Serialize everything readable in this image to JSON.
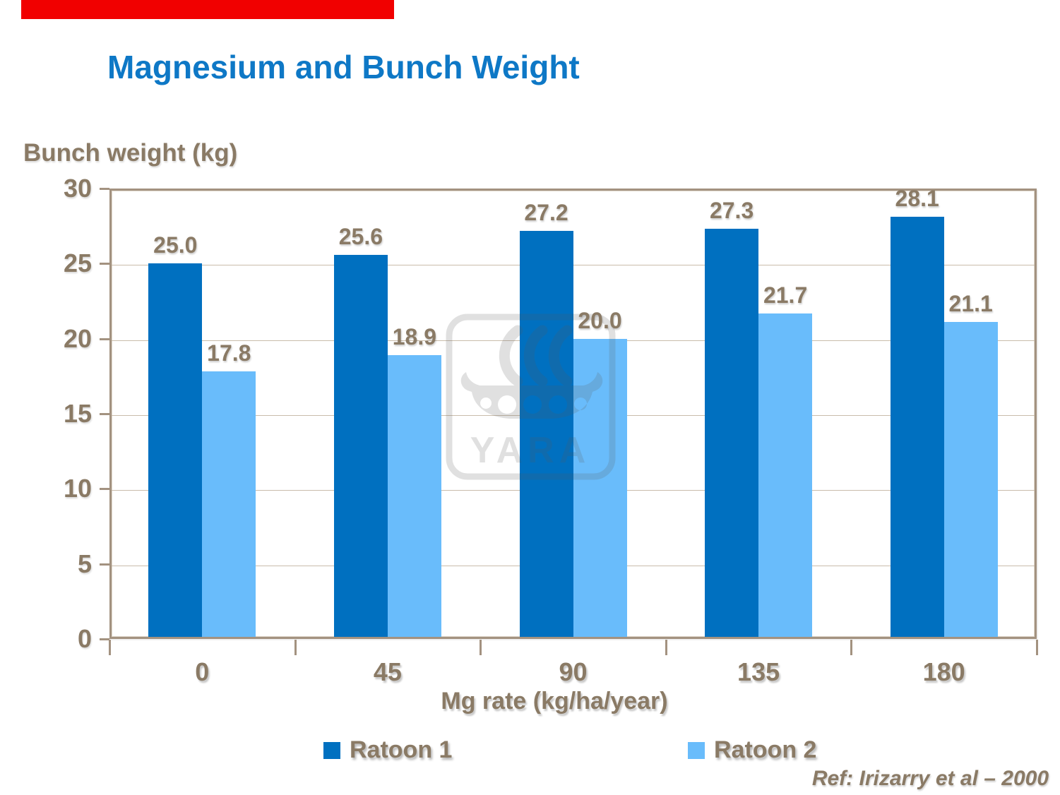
{
  "page": {
    "accent_bar_color": "#F10000",
    "title_color": "#0E78C6",
    "text_color": "#8A7A65"
  },
  "chart_data": {
    "type": "bar",
    "title": "Magnesium and Bunch Weight",
    "categories": [
      "0",
      "45",
      "90",
      "135",
      "180"
    ],
    "series": [
      {
        "name": "Ratoon 1",
        "color": "#0070C0",
        "values": [
          25.0,
          25.6,
          27.2,
          27.3,
          28.1
        ]
      },
      {
        "name": "Ratoon 2",
        "color": "#69BCFB",
        "values": [
          17.8,
          18.9,
          20.0,
          21.7,
          21.1
        ]
      }
    ],
    "xlabel": "Mg rate (kg/ha/year)",
    "ylabel": "Bunch weight (kg)",
    "ylim": [
      0,
      30
    ],
    "ytick_step": 5,
    "grid": true,
    "data_labels": true,
    "legend_position": "bottom",
    "axis_color": "#A39280",
    "grid_color": "#C9BCAB",
    "label_color": "#8A7A65"
  },
  "footer": {
    "reference": "Ref: Irizarry et al – 2000"
  },
  "watermark": {
    "wordmark": "YARA",
    "icon": "viking-ship-icon"
  }
}
